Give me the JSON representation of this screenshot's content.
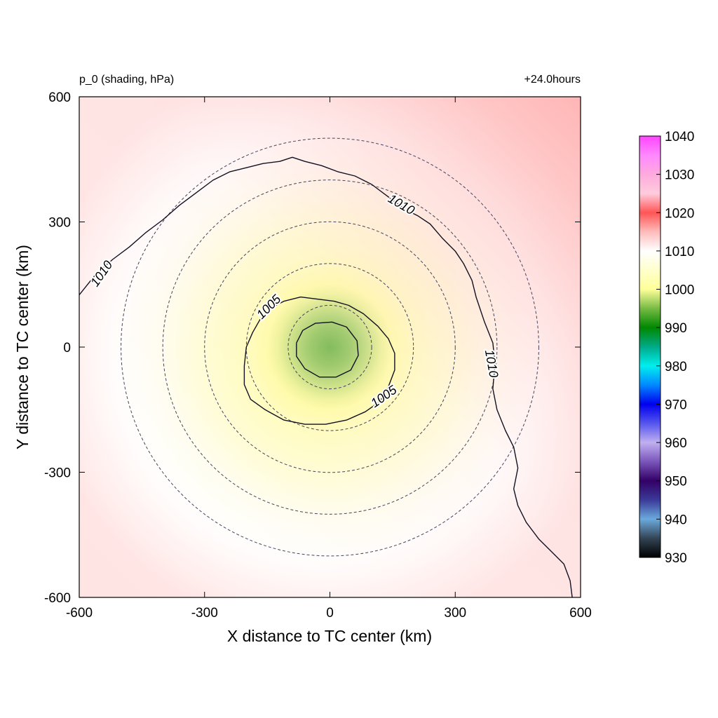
{
  "chart_data": {
    "type": "heatmap",
    "title_left": "p_0 (shading, hPa)",
    "title_right": "+24.0hours",
    "xlabel": "X distance to TC center (km)",
    "ylabel": "Y distance to TC center (km)",
    "xlim": [
      -600,
      600
    ],
    "ylim": [
      -600,
      600
    ],
    "x_ticks": [
      "-600",
      "-300",
      "0",
      "300",
      "600"
    ],
    "y_ticks": [
      "600",
      "300",
      "0",
      "-300",
      "-600"
    ],
    "grid": false,
    "colorbar": {
      "min": 930,
      "max": 1040,
      "ticks": [
        "1040",
        "1030",
        "1020",
        "1010",
        "1000",
        "990",
        "980",
        "970",
        "960",
        "950",
        "940",
        "930"
      ],
      "stops": [
        {
          "value": 930,
          "color": "#000000"
        },
        {
          "value": 935,
          "color": "#334455"
        },
        {
          "value": 940,
          "color": "#6aaadd"
        },
        {
          "value": 945,
          "color": "#3a3a99"
        },
        {
          "value": 950,
          "color": "#330066"
        },
        {
          "value": 955,
          "color": "#7a55bb"
        },
        {
          "value": 960,
          "color": "#c0b0f0"
        },
        {
          "value": 965,
          "color": "#5555ee"
        },
        {
          "value": 970,
          "color": "#0000ee"
        },
        {
          "value": 975,
          "color": "#0088ff"
        },
        {
          "value": 980,
          "color": "#00eeee"
        },
        {
          "value": 985,
          "color": "#00aa88"
        },
        {
          "value": 990,
          "color": "#008800"
        },
        {
          "value": 995,
          "color": "#77bb44"
        },
        {
          "value": 1000,
          "color": "#ffff99"
        },
        {
          "value": 1005,
          "color": "#ffffcc"
        },
        {
          "value": 1010,
          "color": "#ffffff"
        },
        {
          "value": 1015,
          "color": "#ffbbbb"
        },
        {
          "value": 1020,
          "color": "#ff5555"
        },
        {
          "value": 1025,
          "color": "#ffccdd"
        },
        {
          "value": 1030,
          "color": "#ffaadd"
        },
        {
          "value": 1035,
          "color": "#ff88ff"
        },
        {
          "value": 1040,
          "color": "#ff44ff"
        }
      ]
    },
    "pressure_field": {
      "center_pressure": 994,
      "environment_pressure": 1014,
      "radius_of_1005_km": 200,
      "radius_of_1010_km": 420
    },
    "contours": [
      {
        "level": 1010,
        "labels": [
          {
            "text": "1010",
            "x": -545,
            "y": 175,
            "rotation": -55
          },
          {
            "text": "1010",
            "x": 170,
            "y": 340,
            "rotation": 30
          },
          {
            "text": "1010",
            "x": 385,
            "y": -40,
            "rotation": 80
          }
        ],
        "points": [
          [
            -600,
            125
          ],
          [
            -560,
            175
          ],
          [
            -520,
            210
          ],
          [
            -480,
            240
          ],
          [
            -440,
            275
          ],
          [
            -400,
            305
          ],
          [
            -360,
            340
          ],
          [
            -320,
            370
          ],
          [
            -280,
            400
          ],
          [
            -240,
            420
          ],
          [
            -200,
            430
          ],
          [
            -160,
            440
          ],
          [
            -120,
            445
          ],
          [
            -90,
            455
          ],
          [
            -60,
            445
          ],
          [
            -20,
            435
          ],
          [
            20,
            420
          ],
          [
            60,
            410
          ],
          [
            100,
            390
          ],
          [
            140,
            360
          ],
          [
            180,
            330
          ],
          [
            210,
            315
          ],
          [
            240,
            295
          ],
          [
            270,
            260
          ],
          [
            300,
            230
          ],
          [
            320,
            200
          ],
          [
            340,
            160
          ],
          [
            350,
            120
          ],
          [
            370,
            60
          ],
          [
            390,
            10
          ],
          [
            395,
            -40
          ],
          [
            390,
            -100
          ],
          [
            400,
            -150
          ],
          [
            420,
            -200
          ],
          [
            440,
            -240
          ],
          [
            450,
            -290
          ],
          [
            440,
            -340
          ],
          [
            450,
            -380
          ],
          [
            470,
            -420
          ],
          [
            500,
            -460
          ],
          [
            530,
            -490
          ],
          [
            560,
            -520
          ],
          [
            575,
            -560
          ],
          [
            580,
            -600
          ]
        ]
      },
      {
        "level": 1005,
        "labels": [
          {
            "text": "1005",
            "x": -145,
            "y": 95,
            "rotation": -45
          },
          {
            "text": "1005",
            "x": 130,
            "y": -120,
            "rotation": -35
          }
        ],
        "points": [
          [
            -200,
            0
          ],
          [
            -185,
            35
          ],
          [
            -165,
            70
          ],
          [
            -140,
            95
          ],
          [
            -110,
            110
          ],
          [
            -70,
            120
          ],
          [
            -30,
            115
          ],
          [
            10,
            110
          ],
          [
            45,
            100
          ],
          [
            80,
            80
          ],
          [
            115,
            50
          ],
          [
            140,
            20
          ],
          [
            155,
            -15
          ],
          [
            155,
            -55
          ],
          [
            140,
            -95
          ],
          [
            120,
            -130
          ],
          [
            85,
            -155
          ],
          [
            40,
            -175
          ],
          [
            -10,
            -185
          ],
          [
            -60,
            -185
          ],
          [
            -110,
            -175
          ],
          [
            -155,
            -150
          ],
          [
            -190,
            -125
          ],
          [
            -205,
            -90
          ],
          [
            -205,
            -45
          ],
          [
            -200,
            0
          ]
        ]
      },
      {
        "level": 996,
        "labels": [],
        "points": [
          [
            -80,
            10
          ],
          [
            -65,
            40
          ],
          [
            -35,
            57
          ],
          [
            5,
            60
          ],
          [
            40,
            48
          ],
          [
            65,
            15
          ],
          [
            68,
            -20
          ],
          [
            50,
            -55
          ],
          [
            15,
            -72
          ],
          [
            -25,
            -72
          ],
          [
            -60,
            -52
          ],
          [
            -80,
            -22
          ],
          [
            -80,
            10
          ]
        ]
      }
    ],
    "range_rings_km": [
      100,
      200,
      300,
      400,
      500
    ]
  }
}
